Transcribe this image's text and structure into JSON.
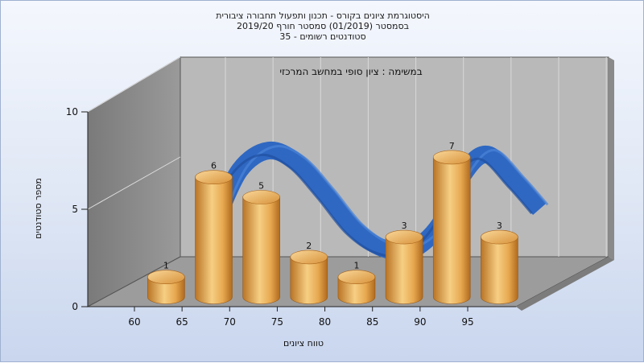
{
  "titles": [
    "היסטוגרמת ציונים בקורס - תכנון ותפעול תחבורה ציבורית",
    "בסמסטר  (01/2019)  סמסטר חורף  2019/20",
    "סטודנטים רשומים - 35"
  ],
  "chart_data": {
    "type": "bar",
    "title": "היסטוגרמת ציונים בקורס - תכנון ותפעול תחבורה ציבורית",
    "subtitle": "בסמסטר  (01/2019)  סמסטר חורף  2019/20 | סטודנטים רשומים - 35",
    "annotation": "במשימה : ציון סופי במחשב המרכזי",
    "xlabel": "טווח ציונים",
    "ylabel": "מספר סטודנטים",
    "x_ticks": [
      "60",
      "65",
      "70",
      "75",
      "80",
      "85",
      "90",
      "95"
    ],
    "y_ticks": [
      0,
      5,
      10
    ],
    "ylim": [
      0,
      10
    ],
    "bars": [
      {
        "x": 62.5,
        "value": 1
      },
      {
        "x": 67.5,
        "value": 6
      },
      {
        "x": 72.5,
        "value": 5
      },
      {
        "x": 77.5,
        "value": 2
      },
      {
        "x": 82.5,
        "value": 1
      },
      {
        "x": 87.5,
        "value": 3
      },
      {
        "x": 92.5,
        "value": 7
      },
      {
        "x": 97.5,
        "value": 3
      }
    ],
    "curve": {
      "x": [
        67.0,
        69.5,
        72.5,
        75.5,
        78.5,
        81.5,
        84.5,
        87.5,
        90.5,
        93.0,
        95.5,
        98.5,
        101.0
      ],
      "y": [
        4.0,
        6.6,
        7.6,
        7.0,
        5.4,
        3.6,
        2.6,
        2.5,
        3.8,
        6.4,
        7.4,
        6.0,
        4.6
      ]
    },
    "grid": true,
    "colors": {
      "bar": "#e4a450",
      "curve": "#2f68c2",
      "back_wall": "#b6b6b6",
      "side_wall": "#8a8a8a",
      "floor": "#9a9a9a"
    }
  }
}
